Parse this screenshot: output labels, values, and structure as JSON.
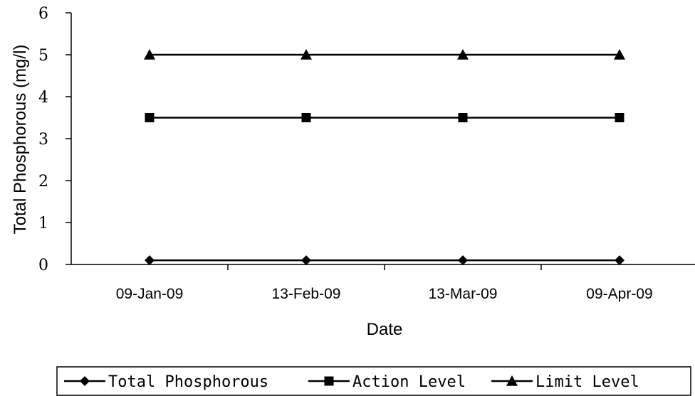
{
  "chart_data": {
    "type": "line",
    "title": "",
    "xlabel": "Date",
    "ylabel": "Total Phosphorous (mg/l)",
    "categories": [
      "09-Jan-09",
      "13-Feb-09",
      "13-Mar-09",
      "09-Apr-09"
    ],
    "ylim": [
      0,
      6
    ],
    "yticks": [
      0,
      1,
      2,
      3,
      4,
      5,
      6
    ],
    "grid": false,
    "legend_position": "bottom",
    "series": [
      {
        "name": "Total Phosphorous",
        "values": [
          0.1,
          0.1,
          0.1,
          0.1
        ],
        "marker": "diamond",
        "color": "#000000"
      },
      {
        "name": "Action Level",
        "values": [
          3.5,
          3.5,
          3.5,
          3.5
        ],
        "marker": "square",
        "color": "#000000"
      },
      {
        "name": "Limit Level",
        "values": [
          5,
          5,
          5,
          5
        ],
        "marker": "triangle",
        "color": "#000000"
      }
    ]
  }
}
